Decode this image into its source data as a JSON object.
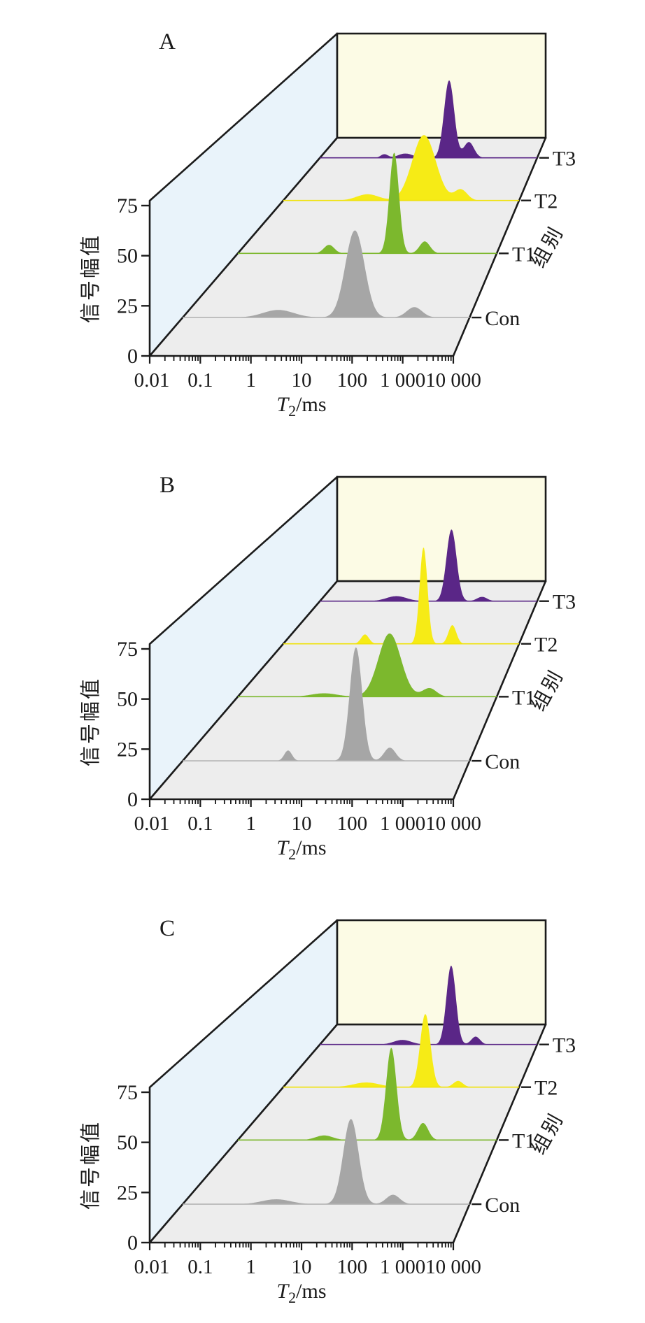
{
  "colors": {
    "background": "#ffffff",
    "left_wall": "#e9f3fa",
    "back_wall": "#fcfbe5",
    "floor": "#ededed",
    "frame": "#1b1b1b",
    "con_fill": "#a6a6a6",
    "t1_fill": "#7cb82d",
    "t2_fill": "#f6eb16",
    "t3_fill": "#5a2687"
  },
  "chart_data": {
    "type": "area",
    "subtype": "3d-waterfall-ridgeline",
    "x_axis": {
      "label_symbol": "T",
      "label_subscript": "2",
      "label_unit": "/ms",
      "scale": "log",
      "range_ms": [
        0.01,
        10000
      ],
      "tick_values": [
        0.01,
        0.1,
        1,
        10,
        100,
        1000,
        10000
      ],
      "tick_labels": [
        "0.01",
        "0.1",
        "1",
        "10",
        "100",
        "1 000",
        "10 000"
      ]
    },
    "y_axis": {
      "label": "信号幅值",
      "range": [
        0,
        75
      ],
      "tick_values": [
        0,
        25,
        50,
        75
      ],
      "tick_labels": [
        "0",
        "25",
        "50",
        "75"
      ]
    },
    "depth_axis": {
      "label": "组别",
      "categories_front_to_back": [
        "Con",
        "T1",
        "T2",
        "T3"
      ]
    },
    "panels": [
      {
        "label": "A",
        "series": [
          {
            "name": "Con",
            "fill": "#a6a6a6",
            "line": "#b4b4b4",
            "peaks": [
              {
                "t2_ms": 1.0,
                "amplitude": 4.0,
                "sigma_dec": 0.32
              },
              {
                "t2_ms": 40,
                "amplitude": 46,
                "sigma_dec": 0.2
              },
              {
                "t2_ms": 700,
                "amplitude": 5.5,
                "sigma_dec": 0.16
              }
            ]
          },
          {
            "name": "T1",
            "fill": "#7cb82d",
            "line": "#7cb82d",
            "peaks": [
              {
                "t2_ms": 1.3,
                "amplitude": 5.0,
                "sigma_dec": 0.12
              },
              {
                "t2_ms": 42,
                "amplitude": 59,
                "sigma_dec": 0.11
              },
              {
                "t2_ms": 215,
                "amplitude": 7.0,
                "sigma_dec": 0.12
              }
            ]
          },
          {
            "name": "T2",
            "fill": "#f6eb16",
            "line": "#f0e20a",
            "peaks": [
              {
                "t2_ms": 1.4,
                "amplitude": 4.0,
                "sigma_dec": 0.28
              },
              {
                "t2_ms": 38,
                "amplitude": 42,
                "sigma_dec": 0.3
              },
              {
                "t2_ms": 330,
                "amplitude": 7.0,
                "sigma_dec": 0.16
              }
            ]
          },
          {
            "name": "T3",
            "fill": "#5a2687",
            "line": "#5a2687",
            "peaks": [
              {
                "t2_ms": 0.6,
                "amplitude": 2.5,
                "sigma_dec": 0.1
              },
              {
                "t2_ms": 2.3,
                "amplitude": 3.0,
                "sigma_dec": 0.2
              },
              {
                "t2_ms": 37,
                "amplitude": 54,
                "sigma_dec": 0.14
              },
              {
                "t2_ms": 130,
                "amplitude": 11,
                "sigma_dec": 0.14
              }
            ]
          }
        ]
      },
      {
        "label": "B",
        "series": [
          {
            "name": "Con",
            "fill": "#a6a6a6",
            "line": "#b4b4b4",
            "peaks": [
              {
                "t2_ms": 1.6,
                "amplitude": 5.5,
                "sigma_dec": 0.08
              },
              {
                "t2_ms": 42,
                "amplitude": 60,
                "sigma_dec": 0.13
              },
              {
                "t2_ms": 215,
                "amplitude": 7.0,
                "sigma_dec": 0.12
              }
            ]
          },
          {
            "name": "T1",
            "fill": "#7cb82d",
            "line": "#7cb82d",
            "peaks": [
              {
                "t2_ms": 1.0,
                "amplitude": 2.0,
                "sigma_dec": 0.3
              },
              {
                "t2_ms": 33,
                "amplitude": 37,
                "sigma_dec": 0.26
              },
              {
                "t2_ms": 275,
                "amplitude": 5.0,
                "sigma_dec": 0.16
              }
            ]
          },
          {
            "name": "T2",
            "fill": "#f6eb16",
            "line": "#f0e20a",
            "peaks": [
              {
                "t2_ms": 1.2,
                "amplitude": 6.0,
                "sigma_dec": 0.1
              },
              {
                "t2_ms": 37,
                "amplitude": 62,
                "sigma_dec": 0.1
              },
              {
                "t2_ms": 200,
                "amplitude": 12,
                "sigma_dec": 0.1
              }
            ]
          },
          {
            "name": "T3",
            "fill": "#5a2687",
            "line": "#5a2687",
            "peaks": [
              {
                "t2_ms": 1.3,
                "amplitude": 3.5,
                "sigma_dec": 0.28
              },
              {
                "t2_ms": 43,
                "amplitude": 50,
                "sigma_dec": 0.14
              },
              {
                "t2_ms": 300,
                "amplitude": 3.0,
                "sigma_dec": 0.14
              }
            ]
          }
        ]
      },
      {
        "label": "C",
        "series": [
          {
            "name": "Con",
            "fill": "#a6a6a6",
            "line": "#b4b4b4",
            "peaks": [
              {
                "t2_ms": 0.9,
                "amplitude": 2.6,
                "sigma_dec": 0.3
              },
              {
                "t2_ms": 33,
                "amplitude": 45,
                "sigma_dec": 0.16
              },
              {
                "t2_ms": 250,
                "amplitude": 5.0,
                "sigma_dec": 0.14
              }
            ]
          },
          {
            "name": "T1",
            "fill": "#7cb82d",
            "line": "#7cb82d",
            "peaks": [
              {
                "t2_ms": 1.0,
                "amplitude": 2.7,
                "sigma_dec": 0.2
              },
              {
                "t2_ms": 36,
                "amplitude": 54,
                "sigma_dec": 0.12
              },
              {
                "t2_ms": 196,
                "amplitude": 10,
                "sigma_dec": 0.12
              }
            ]
          },
          {
            "name": "T2",
            "fill": "#f6eb16",
            "line": "#f0e20a",
            "peaks": [
              {
                "t2_ms": 1.3,
                "amplitude": 3.0,
                "sigma_dec": 0.33
              },
              {
                "t2_ms": 41,
                "amplitude": 47,
                "sigma_dec": 0.13
              },
              {
                "t2_ms": 280,
                "amplitude": 4.0,
                "sigma_dec": 0.12
              }
            ]
          },
          {
            "name": "T3",
            "fill": "#5a2687",
            "line": "#5a2687",
            "peaks": [
              {
                "t2_ms": 1.9,
                "amplitude": 3.2,
                "sigma_dec": 0.24
              },
              {
                "t2_ms": 42,
                "amplitude": 55,
                "sigma_dec": 0.13
              },
              {
                "t2_ms": 200,
                "amplitude": 5.5,
                "sigma_dec": 0.12
              }
            ]
          }
        ]
      }
    ]
  }
}
